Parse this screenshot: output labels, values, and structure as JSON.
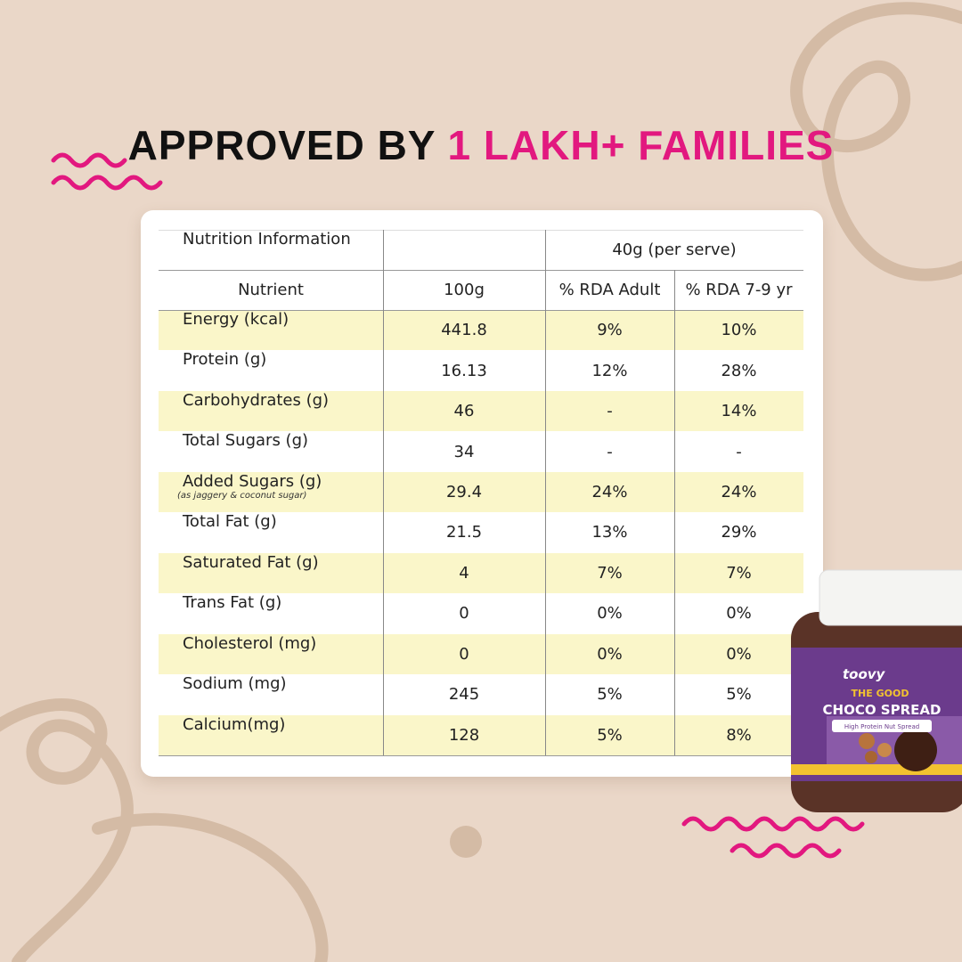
{
  "header": {
    "title_dark": "APPROVED BY",
    "title_pink": "1 LAKH+ FAMILIES"
  },
  "table": {
    "header_top": [
      "Nutrition Information",
      "",
      "40g (per serve)"
    ],
    "columns": [
      "Nutrient",
      "100g",
      "% RDA Adult",
      "% RDA 7-9 yr"
    ],
    "rows": [
      {
        "name": "Energy (kcal)",
        "cells": [
          "441.8",
          "9%",
          "10%"
        ]
      },
      {
        "name": "Protein (g)",
        "cells": [
          "16.13",
          "12%",
          "28%"
        ]
      },
      {
        "name": "Carbohydrates (g)",
        "cells": [
          "46",
          "-",
          "14%"
        ]
      },
      {
        "name": "Total Sugars (g)",
        "cells": [
          "34",
          "-",
          "-"
        ]
      },
      {
        "name": "Added Sugars (g)",
        "note": "(as jaggery & coconut sugar)",
        "cells": [
          "29.4",
          "24%",
          "24%"
        ]
      },
      {
        "name": "Total Fat (g)",
        "cells": [
          "21.5",
          "13%",
          "29%"
        ]
      },
      {
        "name": "Saturated Fat (g)",
        "cells": [
          "4",
          "7%",
          "7%"
        ]
      },
      {
        "name": "Trans Fat (g)",
        "cells": [
          "0",
          "0%",
          "0%"
        ]
      },
      {
        "name": "Cholesterol (mg)",
        "cells": [
          "0",
          "0%",
          "0%"
        ]
      },
      {
        "name": "Sodium (mg)",
        "cells": [
          "245",
          "5%",
          "5%"
        ]
      },
      {
        "name": "Calcium(mg)",
        "cells": [
          "128",
          "5%",
          "8%"
        ]
      }
    ]
  },
  "product": {
    "brand": "toovy",
    "line": "THE GOOD",
    "name": "CHOCO SPREAD",
    "tagline": "High Protein Nut Spread"
  }
}
